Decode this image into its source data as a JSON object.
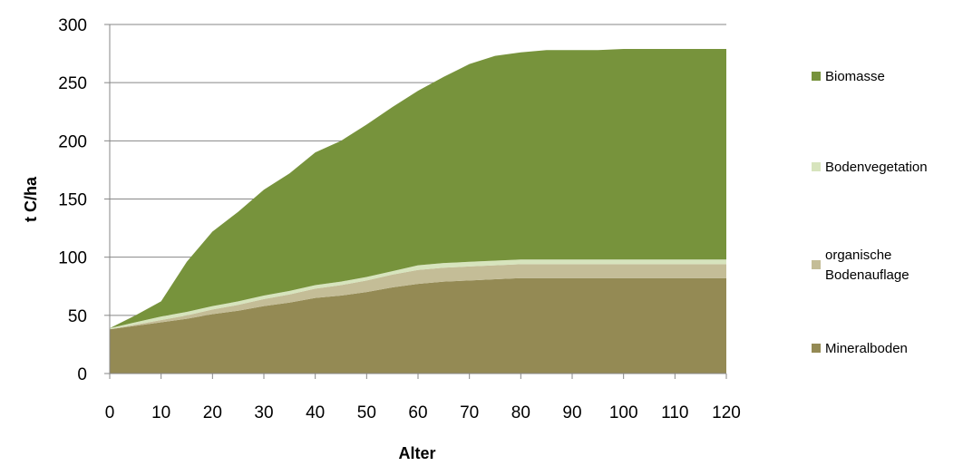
{
  "chart_data": {
    "type": "area",
    "stacked": true,
    "xlabel": "Alter",
    "ylabel": "t C/ha",
    "xlim": [
      0,
      120
    ],
    "ylim": [
      0,
      300
    ],
    "x_ticks": [
      0,
      10,
      20,
      30,
      40,
      50,
      60,
      70,
      80,
      90,
      100,
      110,
      120
    ],
    "y_ticks": [
      0,
      50,
      100,
      150,
      200,
      250,
      300
    ],
    "grid": "horizontal",
    "legend_position": "right",
    "x": [
      0,
      5,
      10,
      15,
      20,
      25,
      30,
      35,
      40,
      45,
      50,
      55,
      60,
      65,
      70,
      75,
      80,
      85,
      90,
      95,
      100,
      105,
      110,
      115,
      120
    ],
    "series": [
      {
        "name": "Mineralboden",
        "color": "#948A54",
        "values": [
          38,
          41,
          44,
          47,
          51,
          54,
          58,
          61,
          65,
          67,
          70,
          74,
          77,
          79,
          80,
          81,
          82,
          82,
          82,
          82,
          82,
          82,
          82,
          82,
          82
        ]
      },
      {
        "name": "organische Bodenauflage",
        "color": "#C4BD97",
        "values": [
          0,
          1,
          2,
          3,
          4,
          5,
          6,
          7,
          8,
          9,
          10,
          11,
          12,
          12,
          12,
          12,
          12,
          12,
          12,
          12,
          12,
          12,
          12,
          12,
          12
        ]
      },
      {
        "name": "Bodenvegetation",
        "color": "#D7E4BD",
        "values": [
          1,
          2,
          3,
          3,
          3,
          3,
          3,
          3,
          3,
          3,
          3,
          3,
          4,
          4,
          4,
          4,
          4,
          4,
          4,
          4,
          4,
          4,
          4,
          4,
          4
        ]
      },
      {
        "name": "Biomasse",
        "color": "#77933C",
        "values": [
          0,
          6,
          13,
          43,
          64,
          77,
          91,
          101,
          114,
          121,
          131,
          141,
          150,
          160,
          170,
          176,
          178,
          180,
          180,
          180,
          181,
          181,
          181,
          181,
          181
        ]
      }
    ],
    "legend_order": [
      "Biomasse",
      "Bodenvegetation",
      "organische Bodenauflage",
      "Mineralboden"
    ],
    "legend_labels": {
      "Biomasse": [
        "Biomasse"
      ],
      "Bodenvegetation": [
        "Bodenvegetation"
      ],
      "organische Bodenauflage": [
        "organische",
        "Bodenauflage"
      ],
      "Mineralboden": [
        "Mineralboden"
      ]
    }
  }
}
